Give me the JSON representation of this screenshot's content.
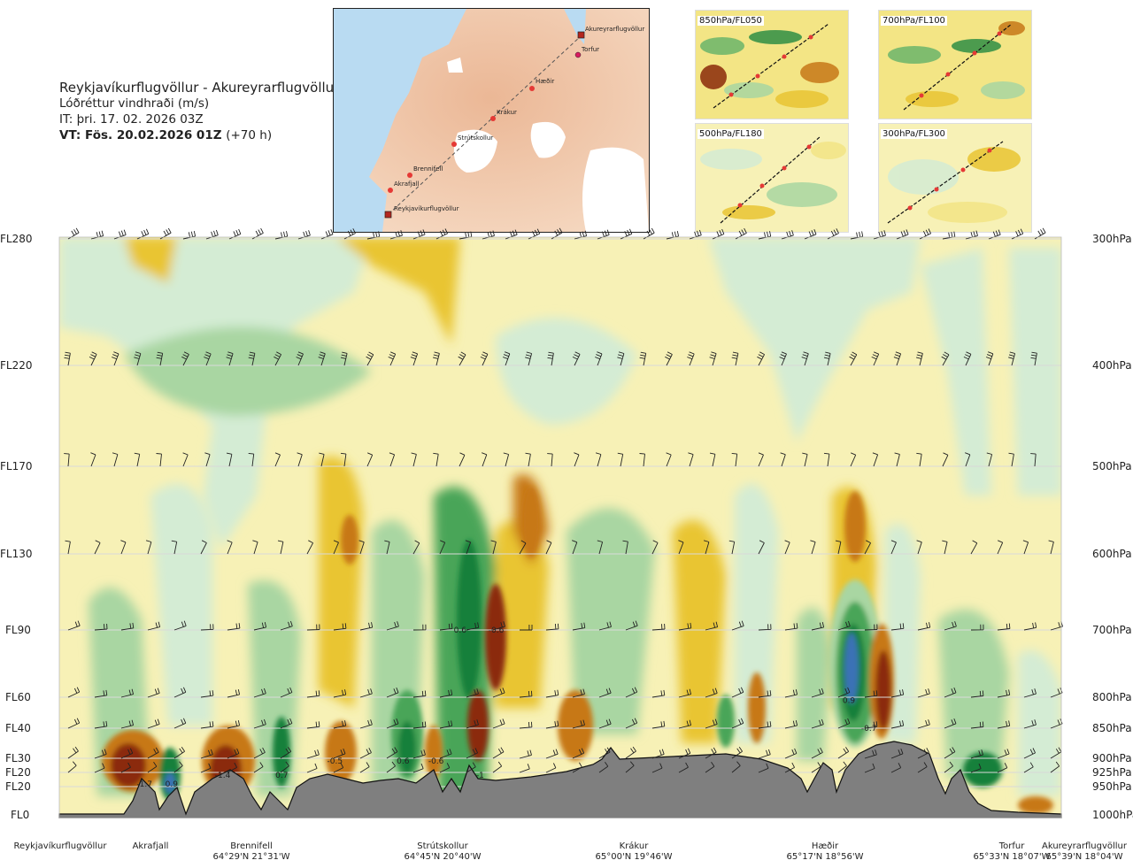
{
  "header": {
    "route": "Reykjavíkurflugvöllur - Akureyrarflugvöllur",
    "variable": "Lóðréttur vindhraði (m/s)",
    "issue_time": "IT: þri. 17. 02. 2026 03Z",
    "valid_time": "VT: Fös. 20.02.2026 01Z",
    "lead_time": "(+70 h)"
  },
  "map": {
    "points": [
      {
        "name": "Akureyrarflugvöllur"
      },
      {
        "name": "Torfur"
      },
      {
        "name": "Hæðir"
      },
      {
        "name": "Krákur"
      },
      {
        "name": "Strútskollur"
      },
      {
        "name": "Brennifell"
      },
      {
        "name": "Akrafjall"
      },
      {
        "name": "Reykjavíkurflugvöllur"
      }
    ]
  },
  "panels": [
    {
      "label": "850hPa/FL050"
    },
    {
      "label": "700hPa/FL100"
    },
    {
      "label": "500hPa/FL180"
    },
    {
      "label": "300hPa/FL300"
    }
  ],
  "chart_data": {
    "type": "heatmap",
    "title": "Reykjavíkurflugvöllur - Akureyrarflugvöllur",
    "left_axis": [
      {
        "label": "FL280",
        "hpa": 300
      },
      {
        "label": "FL220",
        "hpa": 400
      },
      {
        "label": "FL170",
        "hpa": 500
      },
      {
        "label": "FL130",
        "hpa": 600
      },
      {
        "label": "FL90",
        "hpa": 700
      },
      {
        "label": "FL60",
        "hpa": 800
      },
      {
        "label": "FL40",
        "hpa": 850
      },
      {
        "label": "FL30",
        "hpa": 900
      },
      {
        "label": "FL20",
        "hpa": 925
      },
      {
        "label": "FL20",
        "hpa": 950
      },
      {
        "label": "FL0",
        "hpa": 1000
      }
    ],
    "right_axis": [
      "300hPa",
      "400hPa",
      "500hPa",
      "600hPa",
      "700hPa",
      "800hPa",
      "850hPa",
      "900hPa",
      "925hPa",
      "950hPa",
      "1000hPa"
    ],
    "x_stations": [
      {
        "name": "Reykjavíkurflugvöllur",
        "coord": "",
        "pos": 0.0
      },
      {
        "name": "Akrafjall",
        "coord": "",
        "pos": 0.09
      },
      {
        "name": "Brennifell",
        "coord": "64°29'N 21°31'W",
        "pos": 0.19
      },
      {
        "name": "Strútskollur",
        "coord": "64°45'N 20°40'W",
        "pos": 0.38
      },
      {
        "name": "Krákur",
        "coord": "65°00'N 19°46'W",
        "pos": 0.57
      },
      {
        "name": "Hæðir",
        "coord": "65°17'N 18°56'W",
        "pos": 0.76
      },
      {
        "name": "Torfur",
        "coord": "65°33'N 18°07'W",
        "pos": 0.955
      },
      {
        "name": "Akureyrarflugvöllur",
        "coord": "65°39'N 18°04'W",
        "pos": 1.0
      }
    ],
    "labeled_values": [
      {
        "value": "-1.7",
        "pos": 0.085,
        "hpa": 945
      },
      {
        "value": "0.9",
        "pos": 0.112,
        "hpa": 945
      },
      {
        "value": "-1.4",
        "pos": 0.163,
        "hpa": 930
      },
      {
        "value": "0.7",
        "pos": 0.222,
        "hpa": 930
      },
      {
        "value": "-0.5",
        "pos": 0.275,
        "hpa": 905
      },
      {
        "value": "0.6",
        "pos": 0.343,
        "hpa": 905
      },
      {
        "value": "-0.6",
        "pos": 0.376,
        "hpa": 905
      },
      {
        "value": "-1",
        "pos": 0.42,
        "hpa": 930
      },
      {
        "value": "0.6",
        "pos": 0.4,
        "hpa": 700
      },
      {
        "value": "-0.6",
        "pos": 0.436,
        "hpa": 700
      },
      {
        "value": "0.9",
        "pos": 0.788,
        "hpa": 805
      },
      {
        "value": "-0.7",
        "pos": 0.808,
        "hpa": 850
      }
    ]
  },
  "colors": {
    "strong_down": "#8b2b0a",
    "down": "#c77818",
    "weak_down": "#e9c533",
    "slight_down": "#f3e585",
    "neutral": "#f7f1b6",
    "slight_up": "#d4ecd4",
    "weak_up": "#a9d6a2",
    "up": "#4aa558",
    "strong_up": "#17803b",
    "max_up": "#3b72b6",
    "terrain": "#7f7f7f"
  }
}
